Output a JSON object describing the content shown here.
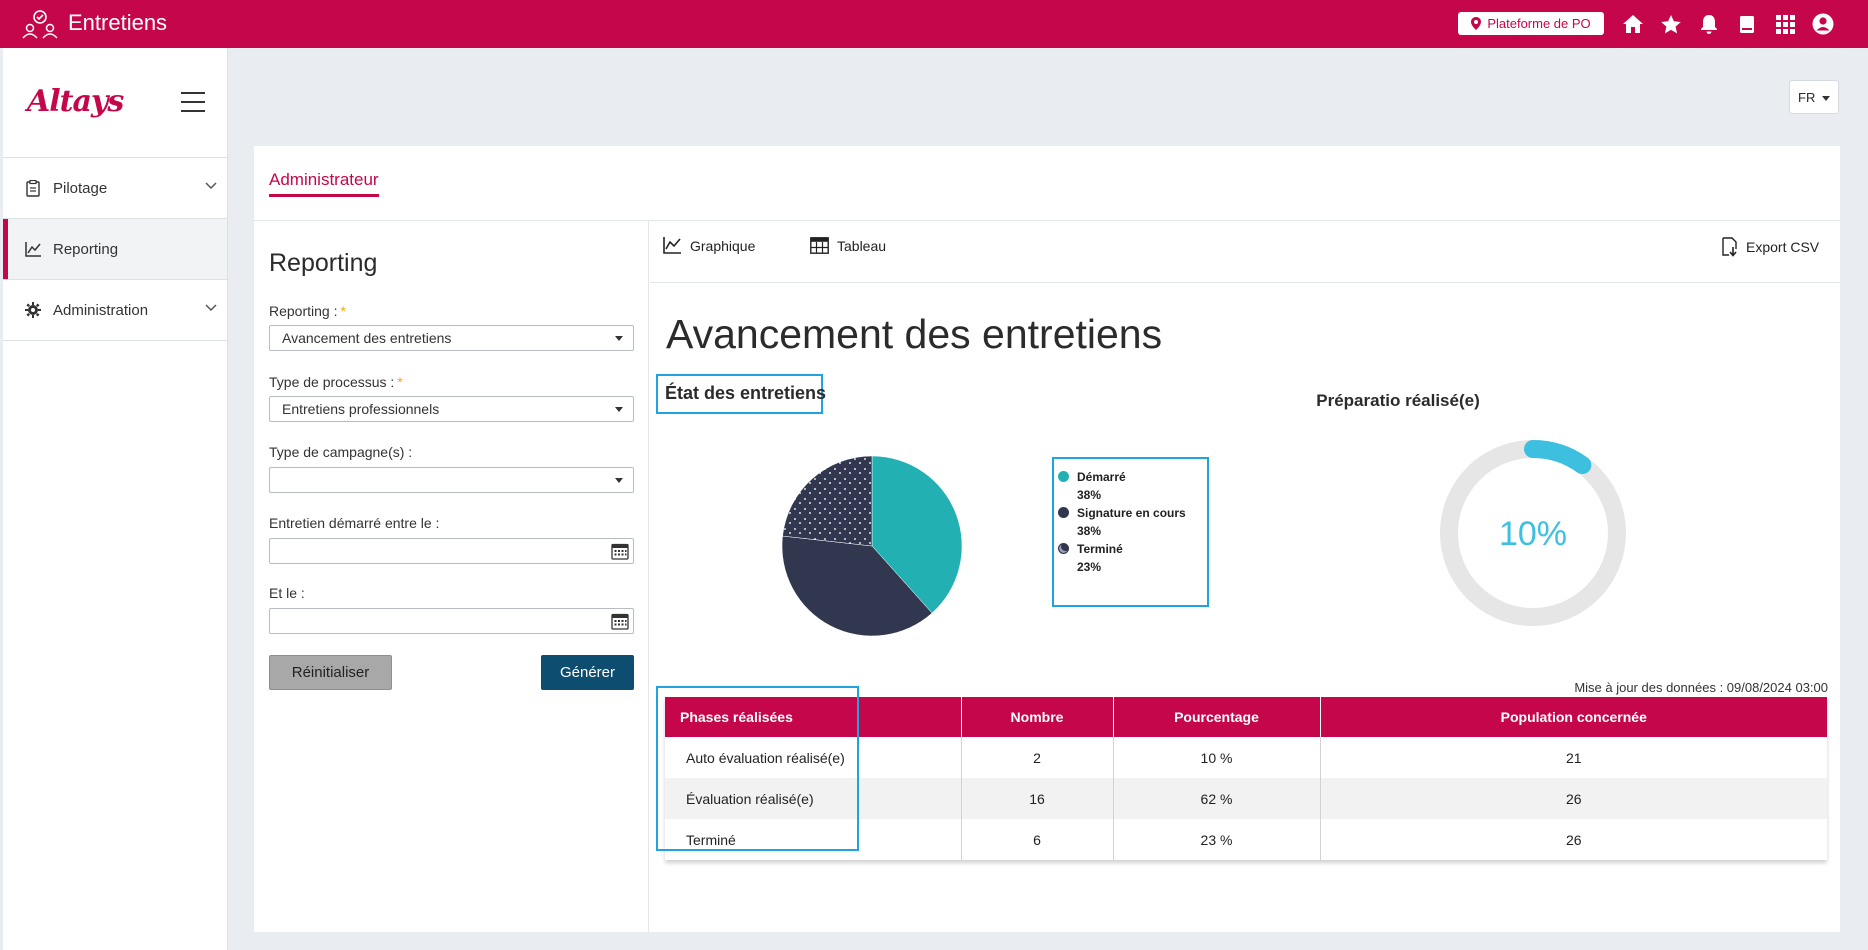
{
  "header": {
    "app_title": "Entretiens",
    "platform_button": "Plateforme de PO",
    "icons": [
      "home-icon",
      "star-icon",
      "bell-icon",
      "book-icon",
      "apps-grid-icon",
      "account-icon"
    ]
  },
  "sidebar": {
    "logo": "Altays",
    "items": [
      {
        "label": "Pilotage",
        "icon": "clipboard-icon",
        "expandable": true
      },
      {
        "label": "Reporting",
        "icon": "line-chart-icon",
        "active": true
      },
      {
        "label": "Administration",
        "icon": "gear-icon",
        "expandable": true
      }
    ]
  },
  "lang": {
    "value": "FR"
  },
  "role_tab": "Administrateur",
  "form": {
    "title": "Reporting",
    "reporting_label": "Reporting :",
    "reporting_value": "Avancement des entretiens",
    "process_label": "Type de processus :",
    "process_value": "Entretiens professionnels",
    "campaign_label": "Type de campagne(s) :",
    "campaign_value": "",
    "start_label": "Entretien démarré entre le :",
    "end_label": "Et le :",
    "reset_button": "Réinitialiser",
    "generate_button": "Générer"
  },
  "toolbar": {
    "chart_label": "Graphique",
    "table_label": "Tableau",
    "export_label": "Export CSV"
  },
  "report": {
    "title": "Avancement des entretiens",
    "pie_title": "État des entretiens",
    "donut_title": "Préparatio réalisé(e)",
    "donut_value_text": "10%",
    "update_text": "Mise à jour des données : 09/08/2024 03:00"
  },
  "colors": {
    "brand": "#c5064a",
    "teal": "#23b0b3",
    "navy": "#31374f",
    "donut_fill": "#3dbfe0",
    "donut_track": "#e6e6e6",
    "highlight": "#1fa4e0",
    "primary_button": "#0d4d6f"
  },
  "chart_data": [
    {
      "type": "pie",
      "title": "État des entretiens",
      "slices": [
        {
          "label": "Démarré",
          "pct_label": "38%",
          "value": 38,
          "color": "#23b0b3",
          "pattern": false
        },
        {
          "label": "Signature en cours",
          "pct_label": "38%",
          "value": 38,
          "color": "#31374f",
          "pattern": false
        },
        {
          "label": "Terminé",
          "pct_label": "23%",
          "value": 23,
          "color": "#31374f",
          "pattern": true
        }
      ],
      "legend_position": "right"
    },
    {
      "type": "donut",
      "title": "Préparatio réalisé(e)",
      "value": 10
    }
  ],
  "table": {
    "headers": [
      "Phases réalisées",
      "Nombre",
      "Pourcentage",
      "Population concernée"
    ],
    "rows": [
      [
        "Auto évaluation réalisé(e)",
        "2",
        "10 %",
        "21"
      ],
      [
        "Évaluation réalisé(e)",
        "16",
        "62 %",
        "26"
      ],
      [
        "Terminé",
        "6",
        "23 %",
        "26"
      ]
    ]
  }
}
